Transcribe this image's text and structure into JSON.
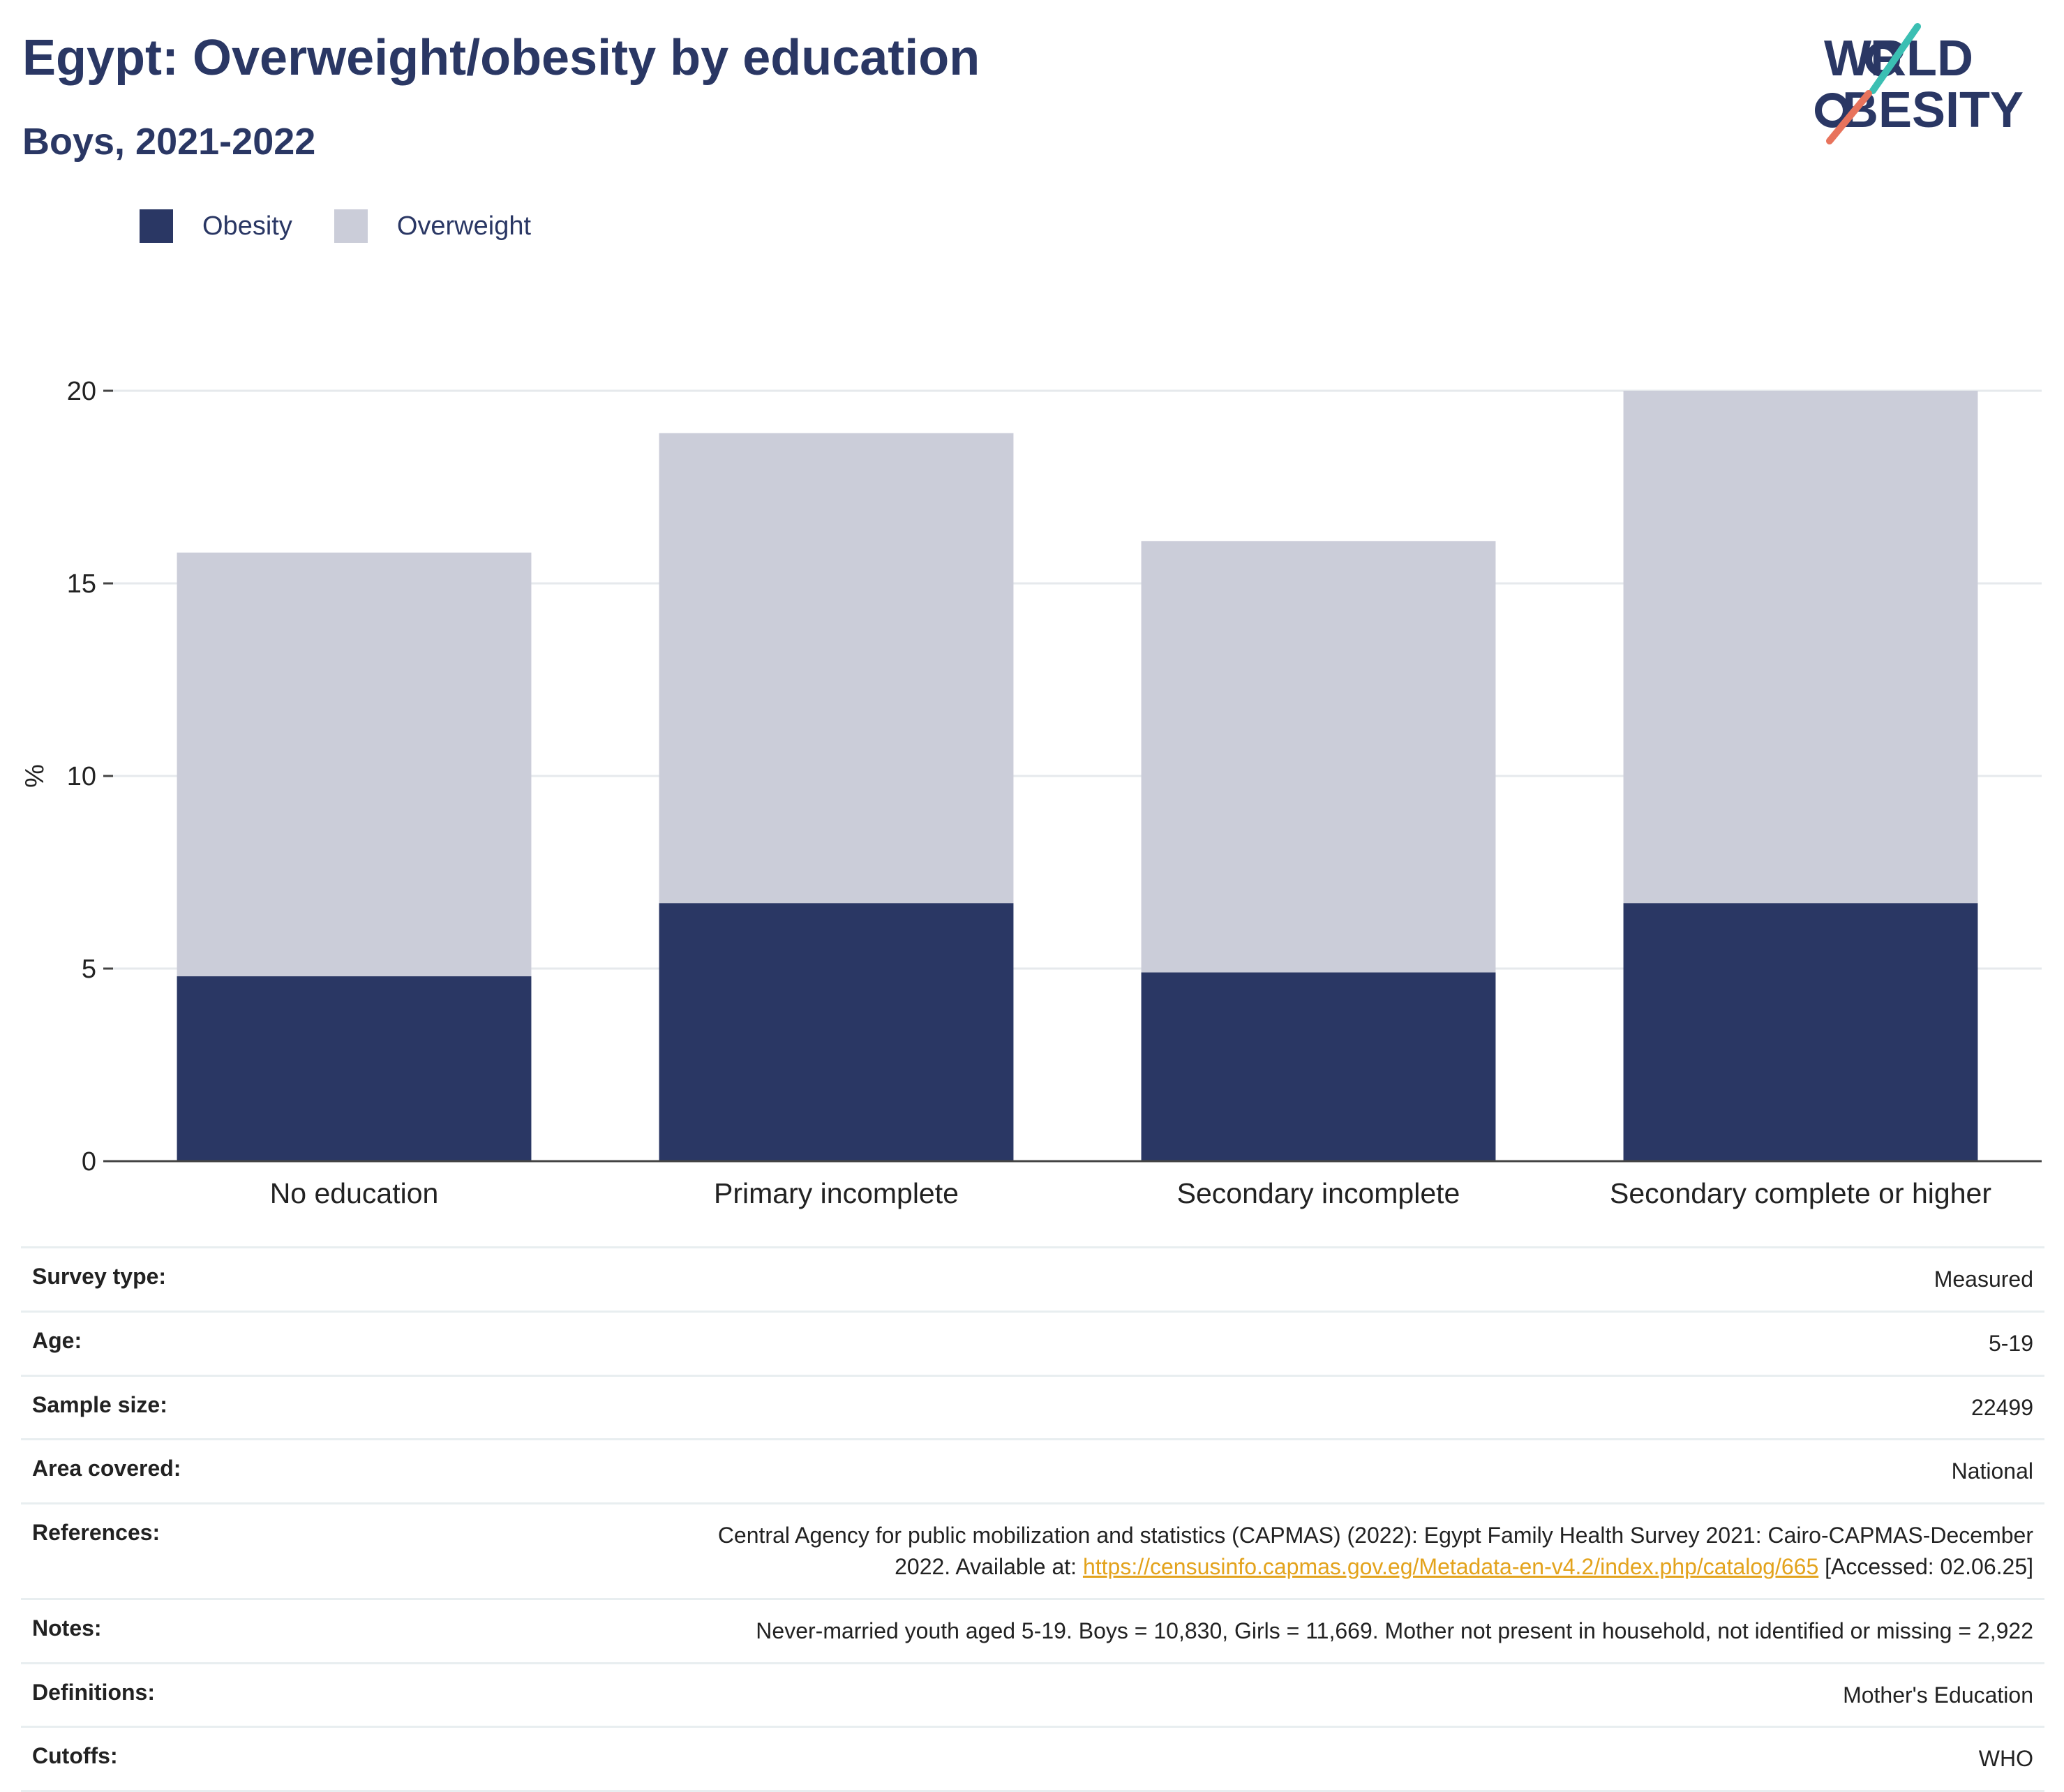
{
  "title": "Egypt: Overweight/obesity by education",
  "subtitle": "Boys, 2021-2022",
  "logo": {
    "line1": "WORLD",
    "line2": "OBESITY",
    "accent_colors": [
      "#3bbfb3",
      "#e8735c"
    ]
  },
  "legend": [
    {
      "label": "Obesity",
      "color": "#2a3764"
    },
    {
      "label": "Overweight",
      "color": "#cbcdd9"
    }
  ],
  "chart_data": {
    "type": "bar",
    "stacked": true,
    "categories": [
      "No education",
      "Primary incomplete",
      "Secondary incomplete",
      "Secondary complete or higher"
    ],
    "series": [
      {
        "name": "Obesity",
        "color": "#2a3764",
        "values": [
          4.8,
          6.7,
          4.9,
          6.7
        ]
      },
      {
        "name": "Overweight",
        "color": "#cbcdd9",
        "values": [
          11.0,
          12.2,
          11.2,
          13.3
        ]
      }
    ],
    "ylabel": "%",
    "ylim": [
      0,
      20
    ],
    "yticks": [
      0,
      5,
      10,
      15,
      20
    ],
    "grid": true
  },
  "info": {
    "survey_type": {
      "label": "Survey type:",
      "value": "Measured"
    },
    "age": {
      "label": "Age:",
      "value": "5-19"
    },
    "sample_size": {
      "label": "Sample size:",
      "value": "22499"
    },
    "area_covered": {
      "label": "Area covered:",
      "value": "National"
    },
    "references": {
      "label": "References:",
      "line1": "Central Agency for public mobilization and statistics (CAPMAS) (2022): Egypt Family Health Survey 2021: Cairo-CAPMAS-December",
      "prefix": "2022. Available at: ",
      "link": "https://censusinfo.capmas.gov.eg/Metadata-en-v4.2/index.php/catalog/665",
      "suffix": " [Accessed: 02.06.25]"
    },
    "notes": {
      "label": "Notes:",
      "value": "Never-married youth aged 5-19. Boys = 10,830, Girls = 11,669. Mother not present in household, not identified or missing = 2,922"
    },
    "definitions": {
      "label": "Definitions:",
      "value": "Mother's Education"
    },
    "cutoffs": {
      "label": "Cutoffs:",
      "value": "WHO"
    }
  }
}
